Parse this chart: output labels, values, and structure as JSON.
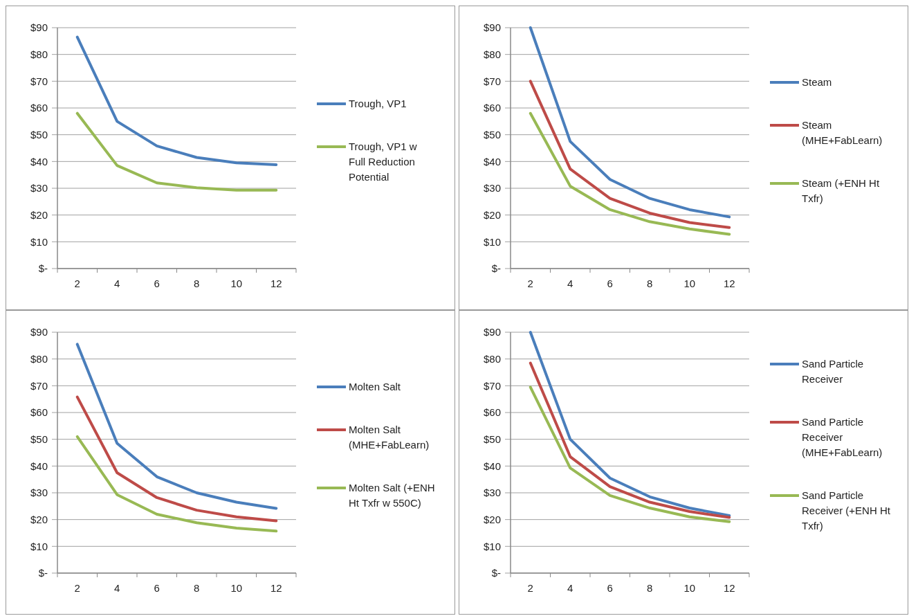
{
  "chart_data": [
    {
      "type": "line",
      "categories": [
        "2",
        "4",
        "6",
        "8",
        "10",
        "12"
      ],
      "ylim": [
        0,
        90
      ],
      "yticks": [
        {
          "value": 0,
          "label": "$-"
        },
        {
          "value": 10,
          "label": "$10"
        },
        {
          "value": 20,
          "label": "$20"
        },
        {
          "value": 30,
          "label": "$30"
        },
        {
          "value": 40,
          "label": "$40"
        },
        {
          "value": 50,
          "label": "$50"
        },
        {
          "value": 60,
          "label": "$60"
        },
        {
          "value": 70,
          "label": "$70"
        },
        {
          "value": 80,
          "label": "$80"
        },
        {
          "value": 90,
          "label": "$90"
        }
      ],
      "grid": "y",
      "legend": "right",
      "series": [
        {
          "name": "Trough, VP1",
          "color": "#4a7ebb",
          "values": [
            86.5,
            55,
            45.8,
            41.5,
            39.5,
            38.8
          ]
        },
        {
          "name": "Trough, VP1 w Full Reduction Potential",
          "color": "#98b954",
          "values": [
            58,
            38.5,
            32,
            30.2,
            29.3,
            29.3
          ]
        }
      ]
    },
    {
      "type": "line",
      "categories": [
        "2",
        "4",
        "6",
        "8",
        "10",
        "12"
      ],
      "ylim": [
        0,
        90
      ],
      "yticks": [
        {
          "value": 0,
          "label": "$-"
        },
        {
          "value": 10,
          "label": "$10"
        },
        {
          "value": 20,
          "label": "$20"
        },
        {
          "value": 30,
          "label": "$30"
        },
        {
          "value": 40,
          "label": "$40"
        },
        {
          "value": 50,
          "label": "$50"
        },
        {
          "value": 60,
          "label": "$60"
        },
        {
          "value": 70,
          "label": "$70"
        },
        {
          "value": 80,
          "label": "$80"
        },
        {
          "value": 90,
          "label": "$90"
        }
      ],
      "grid": "y",
      "legend": "right",
      "series": [
        {
          "name": "Steam",
          "color": "#4a7ebb",
          "values": [
            90,
            47.5,
            33.3,
            26.2,
            22,
            19.3
          ]
        },
        {
          "name": "Steam (MHE+FabLearn)",
          "color": "#be4b48",
          "values": [
            70,
            37.2,
            26.2,
            20.7,
            17.2,
            15.3
          ]
        },
        {
          "name": "Steam (+ENH Ht Txfr)",
          "color": "#98b954",
          "values": [
            58,
            30.8,
            22,
            17.5,
            14.8,
            12.8
          ]
        }
      ]
    },
    {
      "type": "line",
      "categories": [
        "2",
        "4",
        "6",
        "8",
        "10",
        "12"
      ],
      "ylim": [
        0,
        90
      ],
      "yticks": [
        {
          "value": 0,
          "label": "$-"
        },
        {
          "value": 10,
          "label": "$10"
        },
        {
          "value": 20,
          "label": "$20"
        },
        {
          "value": 30,
          "label": "$30"
        },
        {
          "value": 40,
          "label": "$40"
        },
        {
          "value": 50,
          "label": "$50"
        },
        {
          "value": 60,
          "label": "$60"
        },
        {
          "value": 70,
          "label": "$70"
        },
        {
          "value": 80,
          "label": "$80"
        },
        {
          "value": 90,
          "label": "$90"
        }
      ],
      "grid": "y",
      "legend": "right",
      "series": [
        {
          "name": "Molten Salt",
          "color": "#4a7ebb",
          "values": [
            85.5,
            48.5,
            36,
            30,
            26.5,
            24.2
          ]
        },
        {
          "name": "Molten Salt (MHE+FabLearn)",
          "color": "#be4b48",
          "values": [
            65.8,
            37.5,
            28.2,
            23.5,
            21,
            19.5
          ]
        },
        {
          "name": "Molten Salt (+ENH Ht Txfr w 550C)",
          "color": "#98b954",
          "values": [
            51,
            29.3,
            22,
            18.8,
            16.8,
            15.7
          ]
        }
      ]
    },
    {
      "type": "line",
      "categories": [
        "2",
        "4",
        "6",
        "8",
        "10",
        "12"
      ],
      "ylim": [
        0,
        90
      ],
      "yticks": [
        {
          "value": 0,
          "label": "$-"
        },
        {
          "value": 10,
          "label": "$10"
        },
        {
          "value": 20,
          "label": "$20"
        },
        {
          "value": 30,
          "label": "$30"
        },
        {
          "value": 40,
          "label": "$40"
        },
        {
          "value": 50,
          "label": "$50"
        },
        {
          "value": 60,
          "label": "$60"
        },
        {
          "value": 70,
          "label": "$70"
        },
        {
          "value": 80,
          "label": "$80"
        },
        {
          "value": 90,
          "label": "$90"
        }
      ],
      "grid": "y",
      "legend": "right",
      "series": [
        {
          "name": "Sand Particle Receiver",
          "color": "#4a7ebb",
          "values": [
            90,
            50,
            35.5,
            28.5,
            24.3,
            21.5
          ]
        },
        {
          "name": "Sand Particle Receiver (MHE+FabLearn)",
          "color": "#be4b48",
          "values": [
            78.5,
            43.5,
            32.3,
            26.5,
            23,
            20.8
          ]
        },
        {
          "name": "Sand Particle Receiver (+ENH Ht Txfr)",
          "color": "#98b954",
          "values": [
            69.5,
            39.3,
            29,
            24.3,
            21,
            19.2
          ]
        }
      ]
    }
  ]
}
